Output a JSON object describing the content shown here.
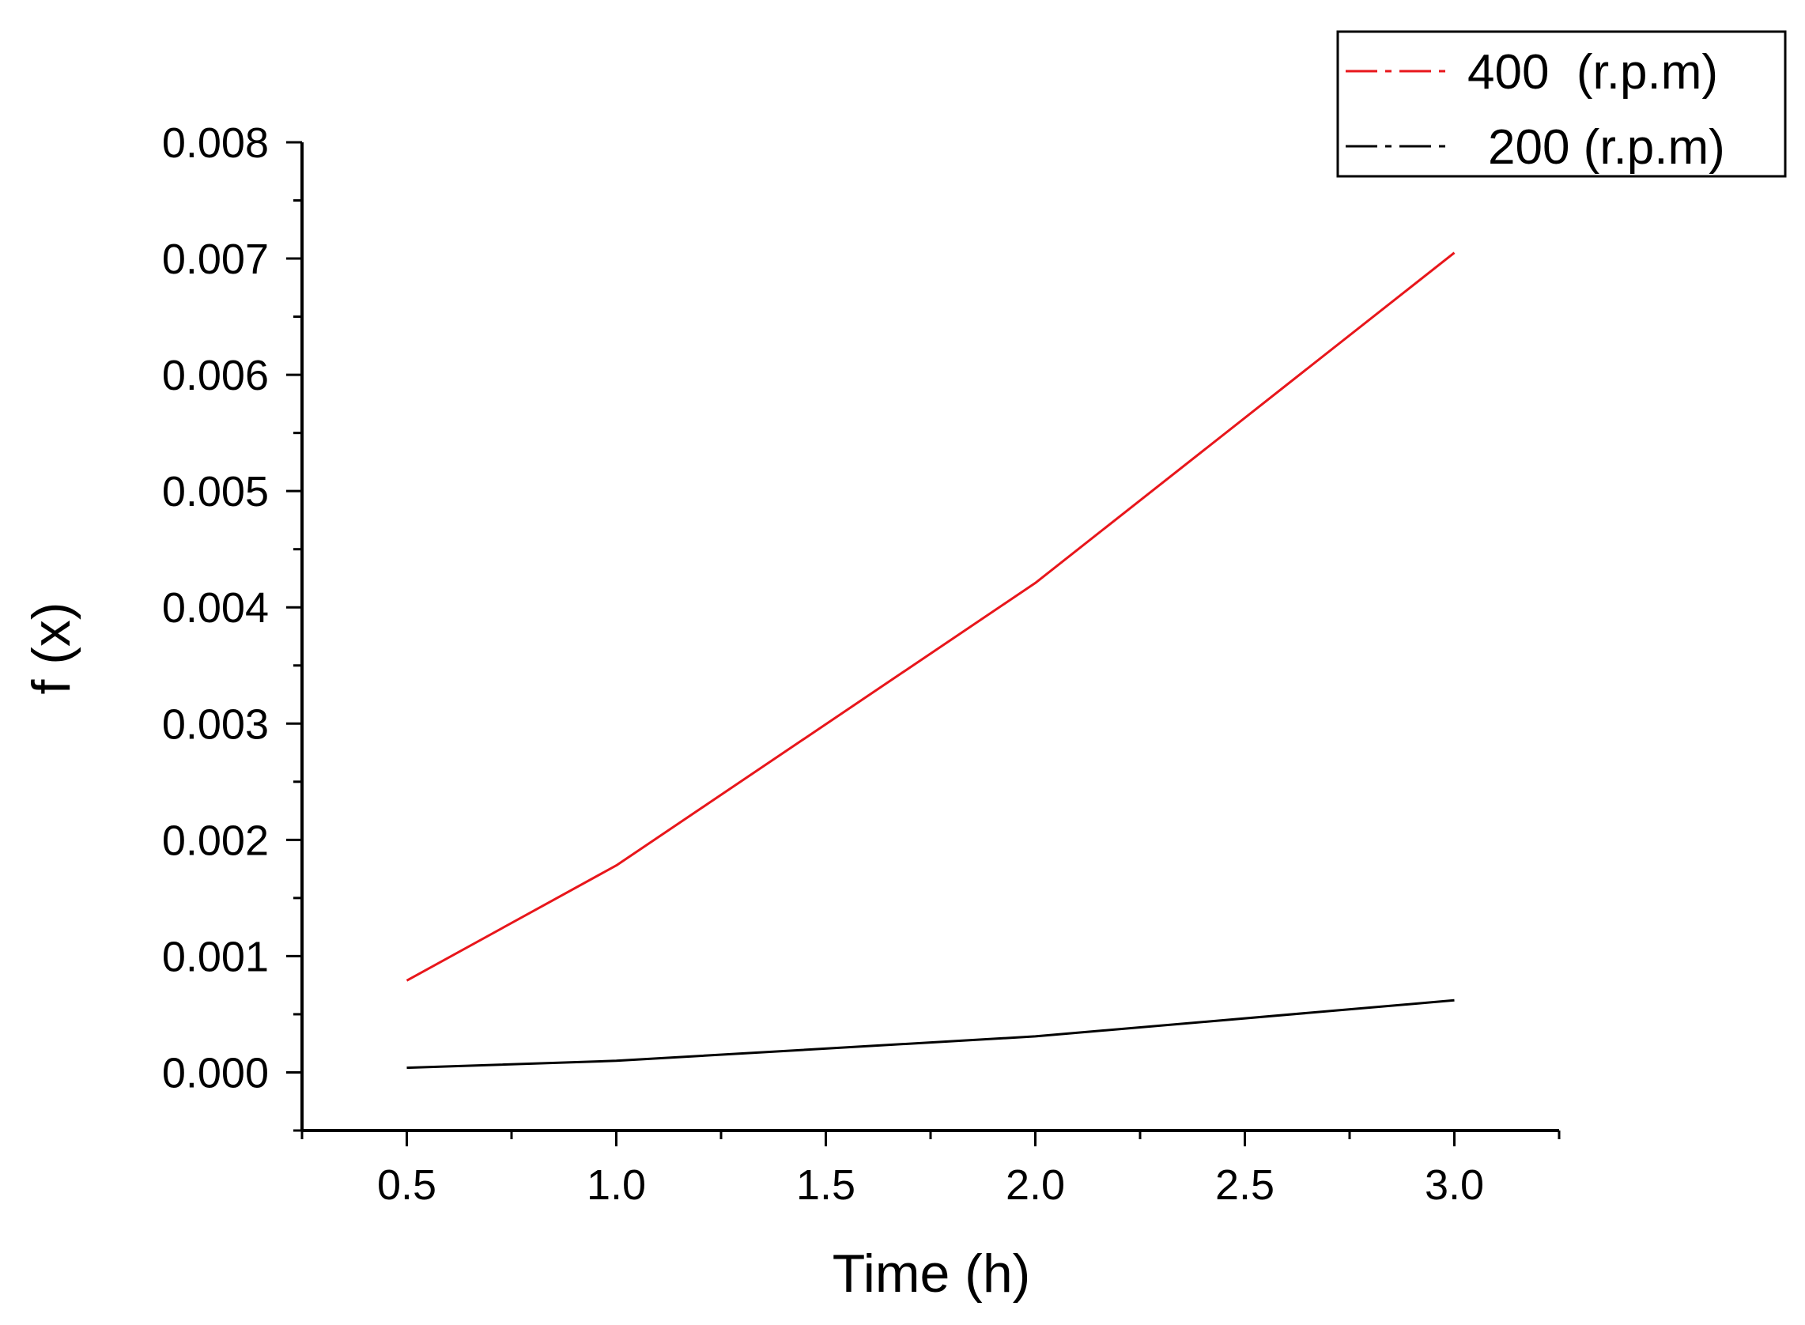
{
  "chart_data": {
    "type": "line",
    "title": "",
    "xlabel": "Time (h)",
    "ylabel": "f (x)",
    "xlim": [
      0.25,
      3.25
    ],
    "ylim": [
      -0.0005,
      0.008
    ],
    "xticks": [
      0.5,
      1.0,
      1.5,
      2.0,
      2.5,
      3.0
    ],
    "xtick_labels": [
      "0.5",
      "1.0",
      "1.5",
      "2.0",
      "2.5",
      "3.0"
    ],
    "yticks": [
      0.0,
      0.001,
      0.002,
      0.003,
      0.004,
      0.005,
      0.006,
      0.007,
      0.008
    ],
    "ytick_labels": [
      "0.000",
      "0.001",
      "0.002",
      "0.003",
      "0.004",
      "0.005",
      "0.006",
      "0.007",
      "0.008"
    ],
    "grid": false,
    "legend_position": "top-right",
    "series": [
      {
        "name": "400  (r.p.m)",
        "color": "#e8161b",
        "x": [
          0.5,
          1.0,
          2.0,
          3.0
        ],
        "y": [
          0.00079,
          0.00178,
          0.00421,
          0.00705
        ]
      },
      {
        "name": "200 (r.p.m)",
        "color": "#000000",
        "x": [
          0.5,
          1.0,
          2.0,
          3.0
        ],
        "y": [
          4e-05,
          0.0001,
          0.00031,
          0.00062
        ]
      }
    ]
  }
}
